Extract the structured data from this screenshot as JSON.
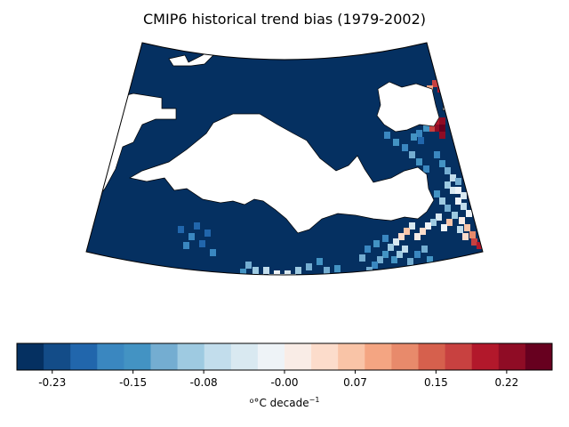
{
  "title": "CMIP6 historical trend bias (1979-2002)",
  "colorbar": {
    "label_main": "°C decade",
    "label_prefix": "o",
    "label_exponent": "−1",
    "ticks": [
      "-0.23",
      "-0.15",
      "-0.08",
      "-0.00",
      "0.07",
      "0.15",
      "0.22"
    ],
    "tick_values": [
      -0.23,
      -0.15,
      -0.08,
      -0.0,
      0.07,
      0.15,
      0.22
    ],
    "vmin": -0.265,
    "vmax": 0.265,
    "colors": [
      "#053061",
      "#134c88",
      "#2166ac",
      "#3a87c0",
      "#4393c3",
      "#74add1",
      "#9ecae1",
      "#c2ddec",
      "#d9e9f1",
      "#eef3f7",
      "#f9ece6",
      "#fcdccb",
      "#f9c4a7",
      "#f4a582",
      "#e88a6b",
      "#d6604d",
      "#c84140",
      "#b2182b",
      "#8f0c25",
      "#67001f"
    ]
  },
  "map": {
    "projection": "conic",
    "region": "Mediterranean",
    "land_color": "#ffffff",
    "sea_dominant_color": "#053061"
  }
}
